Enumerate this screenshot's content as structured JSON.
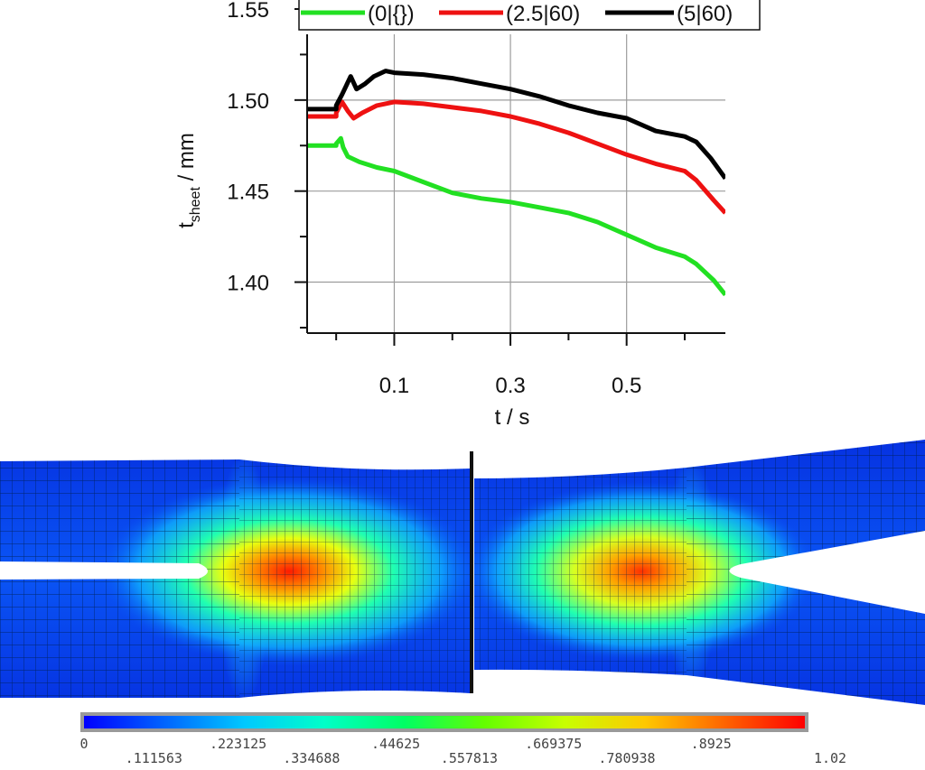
{
  "chart_data": [
    {
      "type": "line",
      "title": "",
      "xlabel": "t / s",
      "ylabel_main": "t",
      "ylabel_sub": "sheet",
      "ylabel_rest": " / mm",
      "xlim": [
        -0.05,
        0.67
      ],
      "ylim": [
        1.372,
        1.55
      ],
      "x_ticks": [
        0.1,
        0.3,
        0.5
      ],
      "x_tick_labels": [
        "0.1",
        "0.3",
        "0.5"
      ],
      "y_ticks": [
        1.4,
        1.45,
        1.5,
        1.55
      ],
      "y_tick_labels": [
        "1.40",
        "1.45",
        "1.50",
        "1.55"
      ],
      "grid": true,
      "legend_position": "top",
      "series": [
        {
          "name": "(0|{})",
          "color": "#22e022",
          "x": [
            -0.05,
            0.0,
            0.0,
            0.008,
            0.012,
            0.02,
            0.04,
            0.07,
            0.1,
            0.15,
            0.2,
            0.25,
            0.3,
            0.35,
            0.4,
            0.45,
            0.5,
            0.55,
            0.6,
            0.62,
            0.65,
            0.67
          ],
          "y": [
            1.475,
            1.475,
            1.476,
            1.479,
            1.474,
            1.469,
            1.466,
            1.463,
            1.461,
            1.455,
            1.449,
            1.446,
            1.444,
            1.441,
            1.438,
            1.433,
            1.426,
            1.419,
            1.414,
            1.41,
            1.401,
            1.393
          ]
        },
        {
          "name": "(2.5|60)",
          "color": "#ee1111",
          "x": [
            -0.05,
            0.0,
            0.0,
            0.01,
            0.02,
            0.03,
            0.045,
            0.07,
            0.1,
            0.15,
            0.2,
            0.25,
            0.3,
            0.35,
            0.4,
            0.45,
            0.5,
            0.55,
            0.6,
            0.62,
            0.65,
            0.67
          ],
          "y": [
            1.491,
            1.491,
            1.493,
            1.499,
            1.494,
            1.49,
            1.493,
            1.497,
            1.499,
            1.498,
            1.496,
            1.494,
            1.491,
            1.487,
            1.482,
            1.476,
            1.47,
            1.465,
            1.461,
            1.456,
            1.445,
            1.438
          ]
        },
        {
          "name": "(5|60)",
          "color": "#000000",
          "x": [
            -0.05,
            0.0,
            0.0,
            0.01,
            0.025,
            0.035,
            0.05,
            0.065,
            0.085,
            0.1,
            0.15,
            0.2,
            0.25,
            0.3,
            0.35,
            0.4,
            0.45,
            0.5,
            0.55,
            0.6,
            0.62,
            0.645,
            0.67
          ],
          "y": [
            1.495,
            1.495,
            1.497,
            1.503,
            1.513,
            1.506,
            1.509,
            1.513,
            1.516,
            1.515,
            1.514,
            1.512,
            1.509,
            1.506,
            1.502,
            1.497,
            1.493,
            1.49,
            1.483,
            1.48,
            1.477,
            1.468,
            1.457
          ]
        }
      ]
    },
    {
      "type": "heatmap",
      "colorbar_min": 0,
      "colorbar_max": 1.02,
      "colorbar_colors": [
        "#0000ff",
        "#0064ff",
        "#00c8ff",
        "#00ffc8",
        "#00ff64",
        "#64ff00",
        "#c8ff00",
        "#ffc800",
        "#ff6400",
        "#ff0000"
      ],
      "colorbar_upper_labels": [
        "0",
        ".223125",
        ".44625",
        ".669375",
        ".8925"
      ],
      "colorbar_lower_labels": [
        ".111563",
        ".334688",
        ".557813",
        ".780938",
        "1.02"
      ]
    }
  ]
}
